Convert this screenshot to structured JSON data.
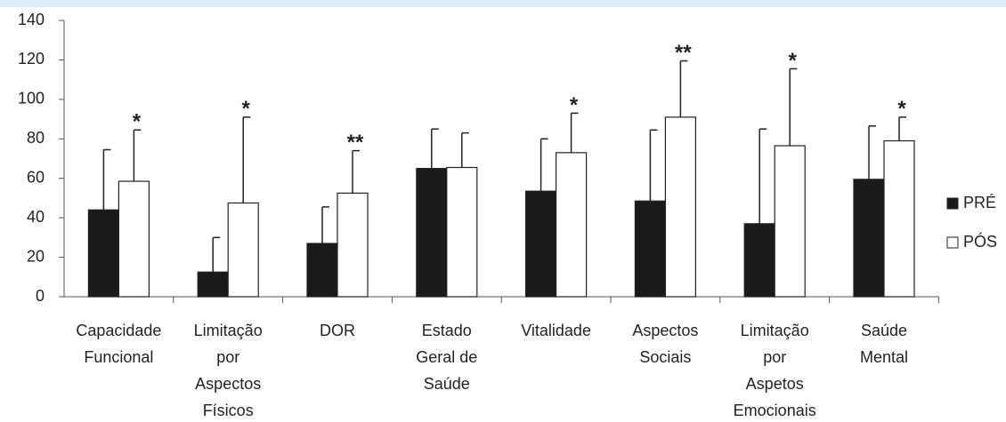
{
  "chart_data": {
    "type": "bar",
    "categories": [
      [
        "Capacidade",
        "Funcional"
      ],
      [
        "Limitação",
        "por",
        "Aspectos",
        "Físicos"
      ],
      [
        "DOR"
      ],
      [
        "Estado",
        "Geral de",
        "Saúde"
      ],
      [
        "Vitalidade"
      ],
      [
        "Aspectos",
        "Sociais"
      ],
      [
        "Limitação",
        "por",
        "Aspetos",
        "Emocionais"
      ],
      [
        "Saúde",
        "Mental"
      ]
    ],
    "series": [
      {
        "name": "PRÉ",
        "color": "#1a1a1a",
        "values": [
          44,
          12.5,
          27,
          65,
          53.5,
          48.5,
          37,
          59.5
        ],
        "errors": [
          30.5,
          17.5,
          18.5,
          20,
          26.5,
          36,
          48,
          27
        ]
      },
      {
        "name": "PÓS",
        "color": "#ffffff",
        "values": [
          58.5,
          47.5,
          52.5,
          65.5,
          73,
          91,
          76.5,
          79
        ],
        "errors": [
          26,
          43.5,
          21.5,
          17.5,
          20,
          28.5,
          39,
          12
        ]
      }
    ],
    "annotations": [
      "*",
      "*",
      "**",
      null,
      "*",
      "**",
      "*",
      "*"
    ],
    "ylim": [
      0,
      140
    ],
    "yticks": [
      0,
      20,
      40,
      60,
      80,
      100,
      120,
      140
    ],
    "legend": "right"
  }
}
